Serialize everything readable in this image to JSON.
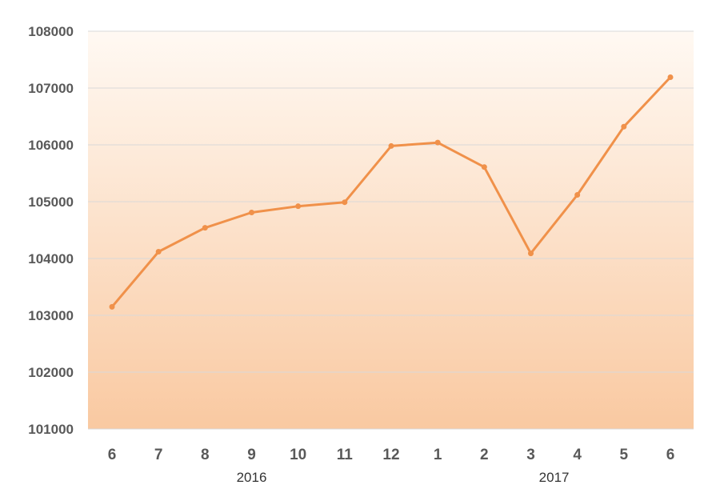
{
  "chart_data": {
    "type": "line",
    "title": "",
    "xlabel": "",
    "ylabel": "",
    "categories": [
      "6",
      "7",
      "8",
      "9",
      "10",
      "11",
      "12",
      "1",
      "2",
      "3",
      "4",
      "5",
      "6"
    ],
    "category_groups": [
      {
        "label": "2016",
        "from": 0,
        "to": 6
      },
      {
        "label": "2017",
        "from": 7,
        "to": 12
      }
    ],
    "series": [
      {
        "values": [
          103150,
          104120,
          104540,
          104810,
          104920,
          104990,
          105980,
          106040,
          105610,
          104090,
          105120,
          106320,
          107190
        ]
      }
    ],
    "ylim": [
      101000,
      108000
    ],
    "yticks": [
      101000,
      102000,
      103000,
      104000,
      105000,
      106000,
      107000,
      108000
    ],
    "grid": true,
    "legend": "none",
    "colors": {
      "line": "#f0914a",
      "marker": "#f0914a",
      "background_top": "#fff9f3",
      "background_bottom": "#f9c9a1",
      "grid": "#d9d9d9",
      "text": "#595959"
    }
  }
}
